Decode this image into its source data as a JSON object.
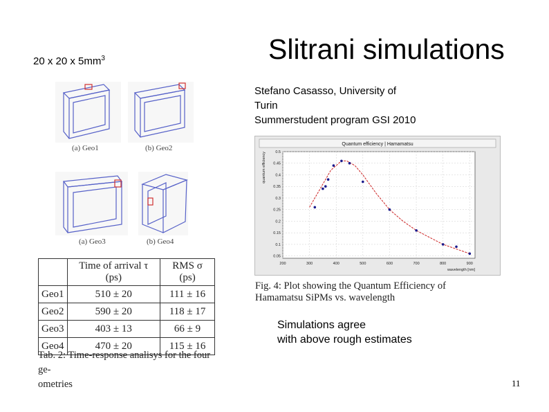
{
  "slide": {
    "title": "Slitrani simulations",
    "dims_text": "20 x 20 x 5mm",
    "dims_sup": "3",
    "author_lines": [
      "Stefano Casasso, University of",
      "Turin",
      "Summerstudent program GSI 2010"
    ],
    "agree_lines": [
      "Simulations agree",
      "with above rough estimates"
    ],
    "page_number": "11"
  },
  "geometries": [
    {
      "caption": "(a) Geo1"
    },
    {
      "caption": "(b) Geo2"
    },
    {
      "caption": "(a) Geo3"
    },
    {
      "caption": "(b) Geo4"
    }
  ],
  "colors": {
    "box_lines": "#5560c8",
    "sipm": "#d03030",
    "curve": "#cc2222",
    "points": "#1a1a8c"
  },
  "figure": {
    "caption_lines": [
      "Fig. 4: Plot showing the Quantum Efficiency of",
      "Hamamatsu SiPMs vs. wavelength"
    ]
  },
  "chart_data": {
    "type": "scatter",
    "title": "Quantum efficiency | Hamamatsu",
    "xlabel": "wavelength [nm]",
    "ylabel": "quantum efficiency",
    "xlim": [
      200,
      920
    ],
    "ylim": [
      0.04,
      0.5
    ],
    "x_ticks": [
      "200",
      "300",
      "400",
      "500",
      "600",
      "700",
      "800",
      "900"
    ],
    "y_ticks": [
      "0.05",
      "0.1",
      "0.15",
      "0.2",
      "0.25",
      "0.3",
      "0.35",
      "0.4",
      "0.45",
      "0.5"
    ],
    "grid": true,
    "series": [
      {
        "x": [
          320,
          350,
          360,
          370,
          390,
          420,
          450,
          500,
          600,
          700,
          800,
          850,
          900
        ],
        "y": [
          0.26,
          0.34,
          0.35,
          0.38,
          0.44,
          0.46,
          0.45,
          0.37,
          0.25,
          0.16,
          0.1,
          0.09,
          0.06
        ]
      }
    ],
    "fit_curve": {
      "x": [
        300,
        340,
        380,
        420,
        440,
        470,
        500,
        550,
        600,
        650,
        700,
        750,
        800,
        850,
        900
      ],
      "y": [
        0.26,
        0.34,
        0.42,
        0.46,
        0.46,
        0.44,
        0.4,
        0.32,
        0.25,
        0.2,
        0.16,
        0.13,
        0.1,
        0.08,
        0.06
      ]
    }
  },
  "table": {
    "headers": [
      "",
      "Time of arrival τ (ps)",
      "RMS σ (ps)"
    ],
    "rows": [
      [
        "Geo1",
        "510 ± 20",
        "111 ± 16"
      ],
      [
        "Geo2",
        "590 ± 20",
        "118 ± 17"
      ],
      [
        "Geo3",
        "403 ± 13",
        "66 ± 9"
      ],
      [
        "Geo4",
        "470 ± 20",
        "115 ± 16"
      ]
    ],
    "caption_lines": [
      "Tab. 2: Time-response analisys for the four ge-",
      "ometries"
    ]
  }
}
